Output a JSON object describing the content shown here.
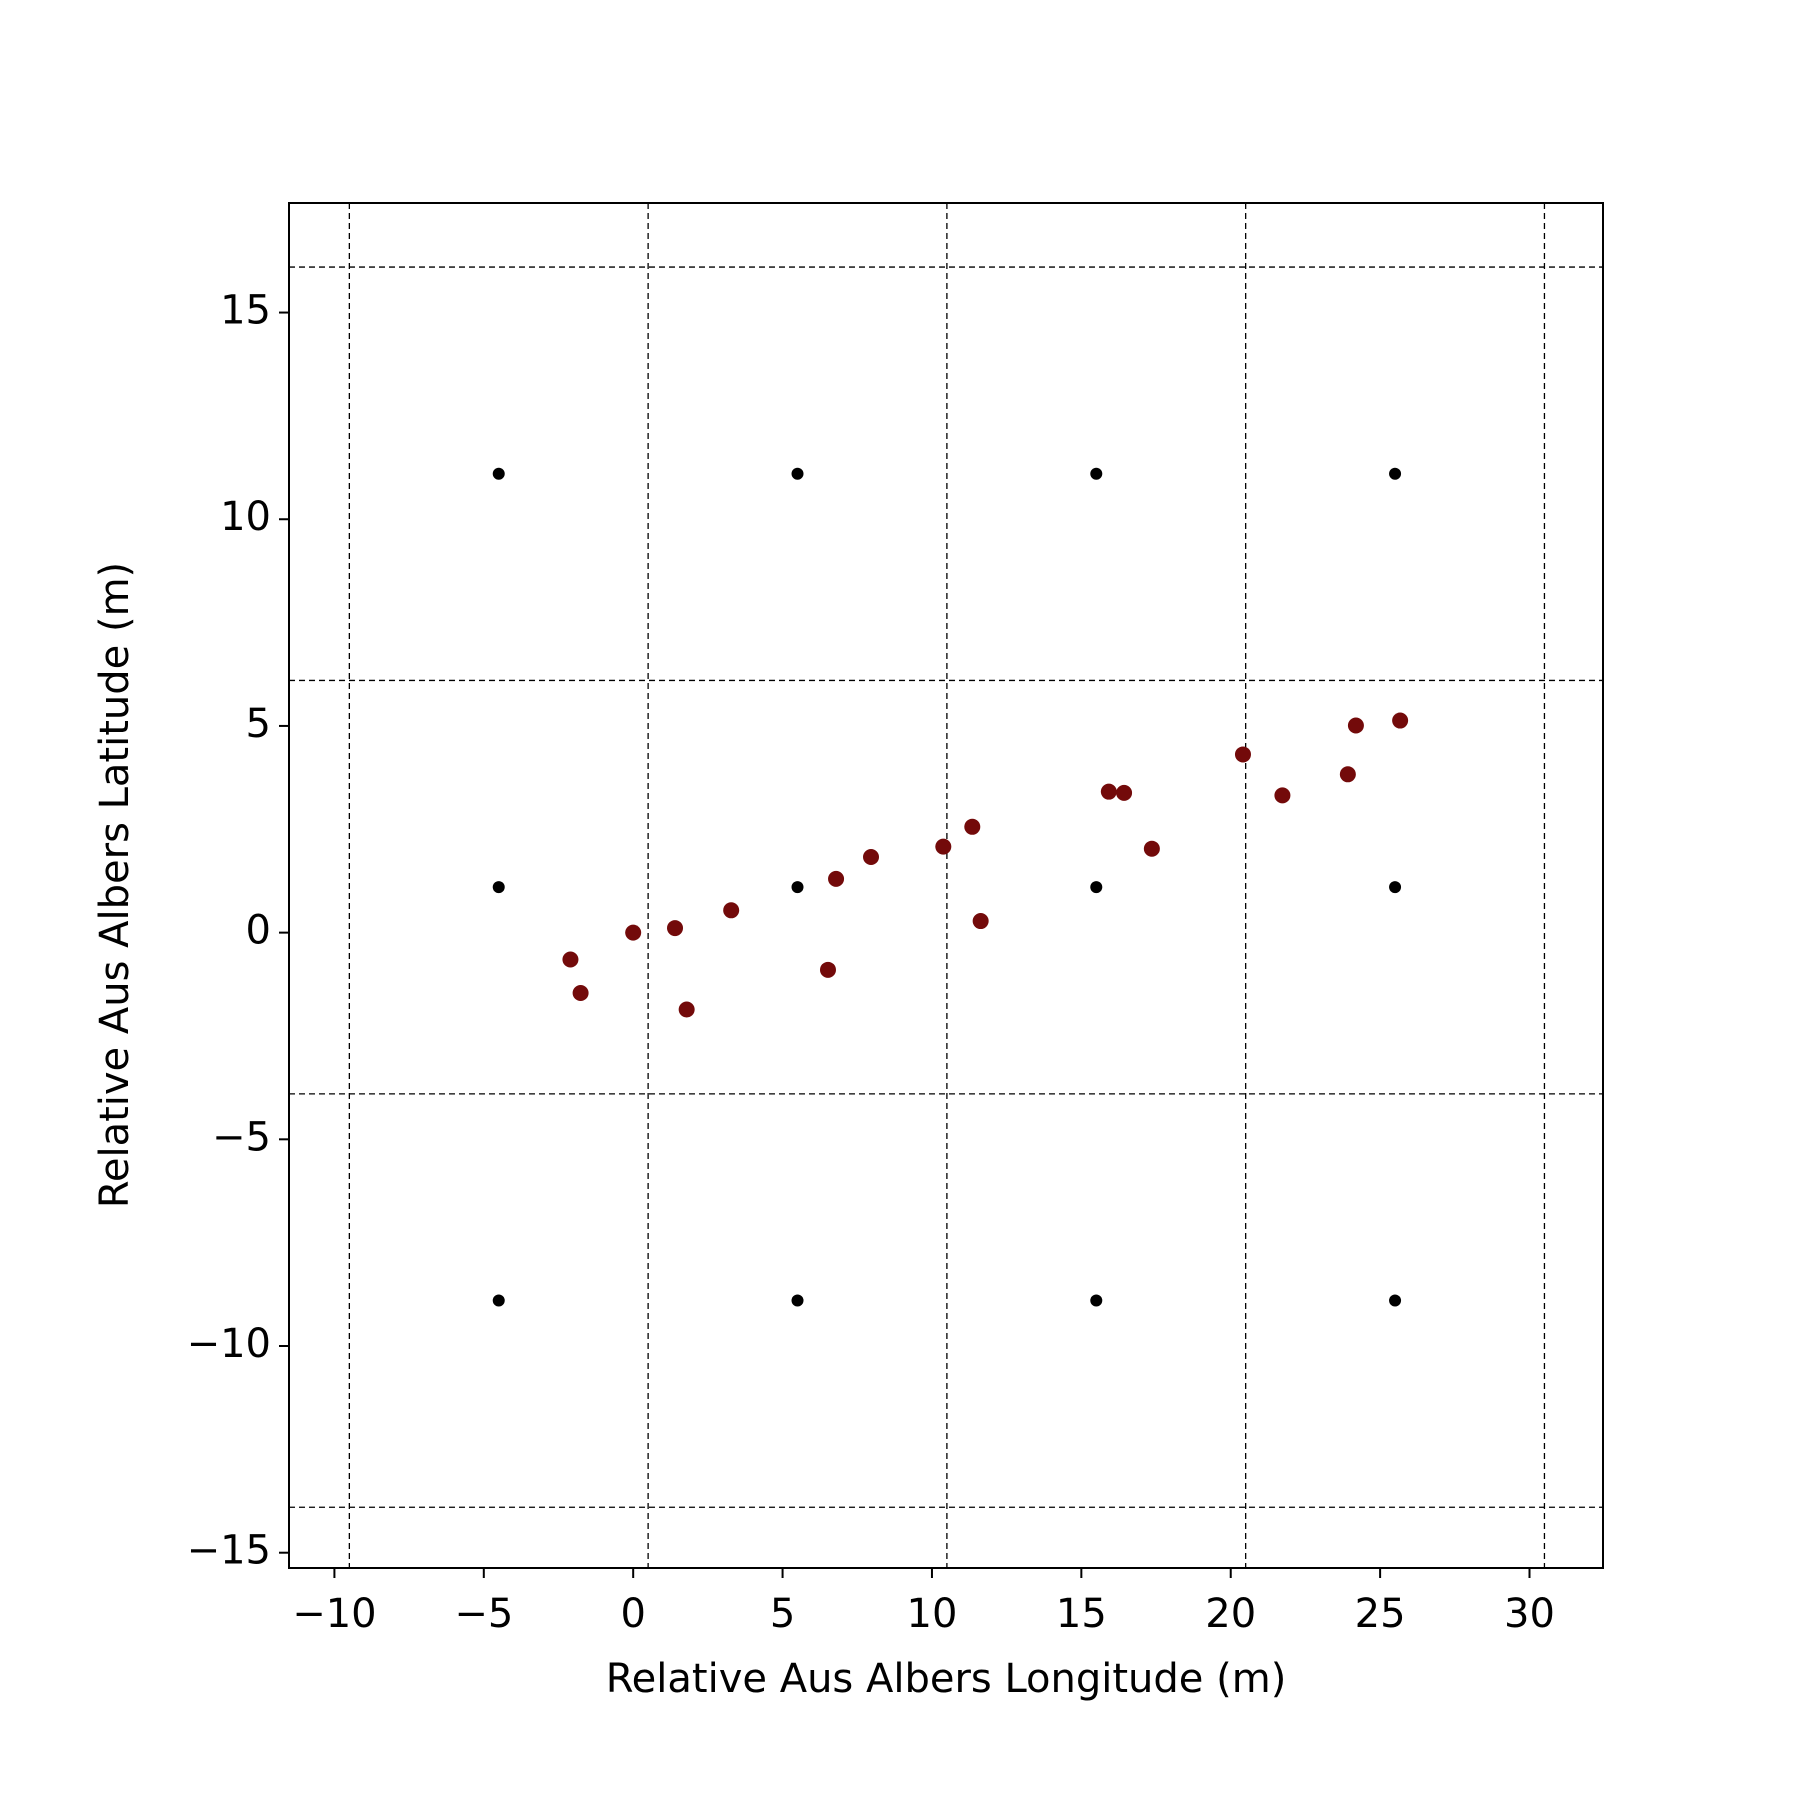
{
  "chart_data": {
    "type": "scatter",
    "xlabel": "Relative Aus Albers Longitude (m)",
    "ylabel": "Relative Aus Albers Latitude (m)",
    "xlim": [
      -11.52,
      32.46
    ],
    "ylim": [
      -15.37,
      17.65
    ],
    "xticks": [
      {
        "value": -10,
        "label": "−10"
      },
      {
        "value": -5,
        "label": "−5"
      },
      0,
      5,
      10,
      15,
      20,
      25,
      30
    ],
    "yticks": [
      {
        "value": -15,
        "label": "−15"
      },
      {
        "value": -10,
        "label": "−10"
      },
      {
        "value": -5,
        "label": "−5"
      },
      0,
      5,
      10,
      15
    ],
    "grid_x": [
      -9.5,
      0.5,
      10.5,
      20.5,
      30.5
    ],
    "grid_y": [
      16.1,
      6.1,
      -3.9,
      -13.9
    ],
    "grid_color": "#000000",
    "series": [
      {
        "color": "#000000",
        "size": 6,
        "x": [
          -4.5,
          5.5,
          15.5,
          25.5,
          -4.5,
          5.5,
          15.5,
          25.5,
          -4.5,
          5.5,
          15.5,
          25.5
        ],
        "values": [
          11.1,
          11.1,
          11.1,
          11.1,
          1.1,
          1.1,
          1.1,
          1.1,
          -8.9,
          -8.9,
          -8.9,
          -8.9
        ]
      },
      {
        "color": "#730a0a",
        "size": 8,
        "x": [
          -2.1,
          -1.76,
          0,
          1.4,
          1.79,
          3.28,
          6.52,
          6.79,
          7.96,
          10.38,
          11.35,
          11.63,
          15.92,
          16.43,
          17.36,
          20.41,
          21.73,
          23.92,
          24.19,
          25.67
        ],
        "values": [
          -0.65,
          -1.46,
          0,
          0.11,
          -1.86,
          0.54,
          -0.9,
          1.3,
          1.83,
          2.08,
          2.56,
          0.28,
          3.41,
          3.38,
          2.03,
          4.31,
          3.32,
          3.83,
          5.01,
          5.13
        ]
      }
    ]
  }
}
